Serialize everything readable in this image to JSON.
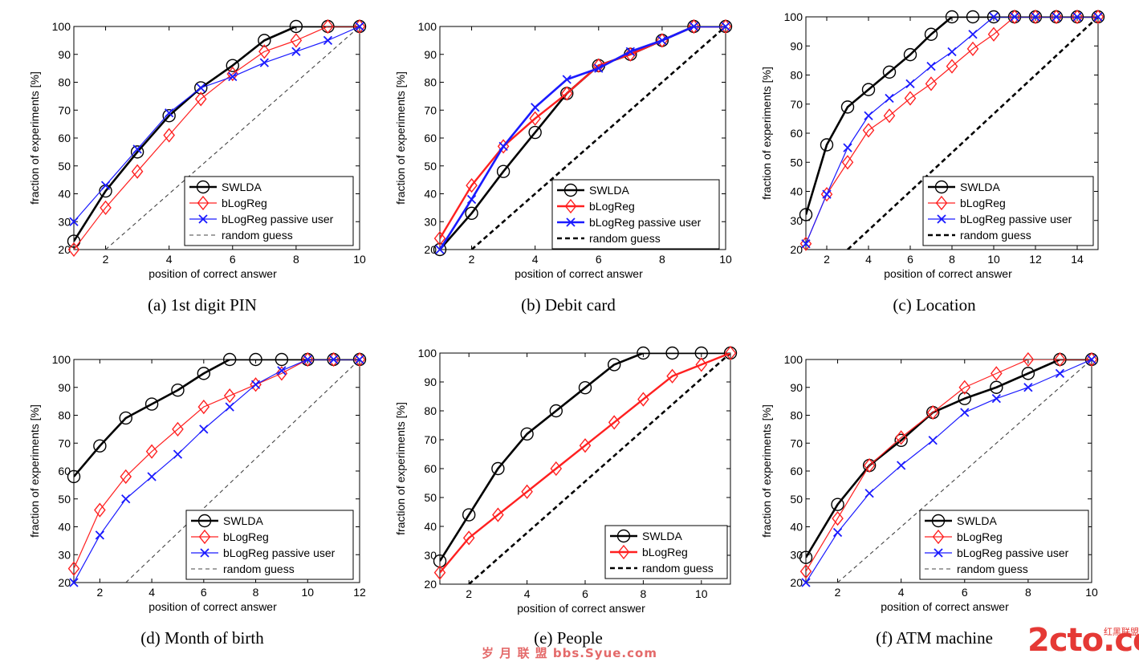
{
  "colors": {
    "swlda": "#000000",
    "blogreg": "#ff2020",
    "passive": "#1a1aff",
    "random": "#444444"
  },
  "chart_data": [
    {
      "type": "line",
      "caption": "(a)  1st digit PIN",
      "xlabel": "position of correct answer",
      "ylabel": "fraction of experiments [%]",
      "xlim": [
        1,
        10
      ],
      "ylim": [
        20,
        100
      ],
      "xticks": [
        2,
        4,
        6,
        8,
        10
      ],
      "yticks": [
        20,
        30,
        40,
        50,
        60,
        70,
        80,
        90,
        100
      ],
      "legend_position": "bottom-right",
      "series": [
        {
          "name": "SWLDA",
          "style": "swlda",
          "x": [
            1,
            2,
            3,
            4,
            5,
            6,
            7,
            8,
            9,
            10
          ],
          "y": [
            23,
            41,
            55,
            68,
            78,
            86,
            95,
            100,
            100,
            100
          ]
        },
        {
          "name": "bLogReg",
          "style": "blogreg",
          "x": [
            1,
            2,
            3,
            4,
            5,
            6,
            7,
            8,
            9,
            10
          ],
          "y": [
            20,
            35,
            48,
            61,
            74,
            83,
            91,
            95,
            100,
            100
          ]
        },
        {
          "name": "bLogReg passive user",
          "style": "passive_thin",
          "x": [
            1,
            2,
            3,
            4,
            5,
            6,
            7,
            8,
            9,
            10
          ],
          "y": [
            30,
            43,
            56,
            69,
            78,
            82,
            87,
            91,
            95,
            100
          ]
        },
        {
          "name": "random guess",
          "style": "random_thin",
          "x": [
            2,
            10
          ],
          "y": [
            20,
            100
          ]
        }
      ]
    },
    {
      "type": "line",
      "caption": "(b)  Debit card",
      "xlabel": "position of correct answer",
      "ylabel": "fraction of experiments [%]",
      "xlim": [
        1,
        10
      ],
      "ylim": [
        20,
        100
      ],
      "xticks": [
        2,
        4,
        6,
        8,
        10
      ],
      "yticks": [
        20,
        30,
        40,
        50,
        60,
        70,
        80,
        90,
        100
      ],
      "legend_position": "bottom-right",
      "series": [
        {
          "name": "SWLDA",
          "style": "swlda",
          "x": [
            1,
            2,
            3,
            4,
            5,
            6,
            7,
            8,
            9,
            10
          ],
          "y": [
            20,
            33,
            48,
            62,
            76,
            86,
            90,
            95,
            100,
            100
          ]
        },
        {
          "name": "bLogReg",
          "style": "blogreg_thick",
          "x": [
            1,
            2,
            3,
            4,
            5,
            6,
            7,
            8,
            9,
            10
          ],
          "y": [
            24,
            43,
            57,
            67,
            76,
            86,
            90,
            95,
            100,
            100
          ]
        },
        {
          "name": "bLogReg passive user",
          "style": "passive_thick",
          "x": [
            1,
            2,
            3,
            4,
            5,
            6,
            7,
            8,
            9,
            10
          ],
          "y": [
            20,
            38,
            57,
            71,
            81,
            85,
            91,
            95,
            100,
            100
          ]
        },
        {
          "name": "random guess",
          "style": "random_thick",
          "x": [
            2,
            10
          ],
          "y": [
            20,
            100
          ]
        }
      ]
    },
    {
      "type": "line",
      "caption": "(c)  Location",
      "xlabel": "position of correct answer",
      "ylabel": "fraction of experiments [%]",
      "xlim": [
        1,
        15
      ],
      "ylim": [
        20,
        100
      ],
      "xticks": [
        2,
        4,
        6,
        8,
        10,
        12,
        14
      ],
      "yticks": [
        20,
        30,
        40,
        50,
        60,
        70,
        80,
        90,
        100
      ],
      "legend_position": "bottom-right",
      "series": [
        {
          "name": "SWLDA",
          "style": "swlda",
          "x": [
            1,
            2,
            3,
            4,
            5,
            6,
            7,
            8,
            9,
            10,
            11,
            12,
            13,
            14,
            15
          ],
          "y": [
            32,
            56,
            69,
            75,
            81,
            87,
            94,
            100,
            100,
            100,
            100,
            100,
            100,
            100,
            100
          ]
        },
        {
          "name": "bLogReg",
          "style": "blogreg",
          "x": [
            1,
            2,
            3,
            4,
            5,
            6,
            7,
            8,
            9,
            10,
            11,
            12,
            13,
            14,
            15
          ],
          "y": [
            22,
            39,
            50,
            61,
            66,
            72,
            77,
            83,
            89,
            94,
            100,
            100,
            100,
            100,
            100
          ]
        },
        {
          "name": "bLogReg passive user",
          "style": "passive_thin",
          "x": [
            1,
            2,
            3,
            4,
            5,
            6,
            7,
            8,
            9,
            10,
            11,
            12,
            13,
            14,
            15
          ],
          "y": [
            22,
            39,
            55,
            66,
            72,
            77,
            83,
            88,
            94,
            100,
            100,
            100,
            100,
            100,
            100
          ]
        },
        {
          "name": "random guess",
          "style": "random_thick",
          "x": [
            3,
            15
          ],
          "y": [
            20,
            100
          ]
        }
      ]
    },
    {
      "type": "line",
      "caption": "(d)  Month of birth",
      "xlabel": "position of correct answer",
      "ylabel": "fraction of experiments [%]",
      "xlim": [
        1,
        12
      ],
      "ylim": [
        20,
        100
      ],
      "xticks": [
        2,
        4,
        6,
        8,
        10,
        12
      ],
      "yticks": [
        20,
        30,
        40,
        50,
        60,
        70,
        80,
        90,
        100
      ],
      "legend_position": "bottom-right",
      "series": [
        {
          "name": "SWLDA",
          "style": "swlda",
          "x": [
            1,
            2,
            3,
            4,
            5,
            6,
            7,
            8,
            9,
            10,
            11,
            12
          ],
          "y": [
            58,
            69,
            79,
            84,
            89,
            95,
            100,
            100,
            100,
            100,
            100,
            100
          ]
        },
        {
          "name": "bLogReg",
          "style": "blogreg",
          "x": [
            1,
            2,
            3,
            4,
            5,
            6,
            7,
            8,
            9,
            10,
            11,
            12
          ],
          "y": [
            25,
            46,
            58,
            67,
            75,
            83,
            87,
            91,
            95,
            100,
            100,
            100
          ]
        },
        {
          "name": "bLogReg passive user",
          "style": "passive_thin",
          "x": [
            1,
            2,
            3,
            4,
            5,
            6,
            7,
            8,
            9,
            10,
            11,
            12
          ],
          "y": [
            20,
            37,
            50,
            58,
            66,
            75,
            83,
            91,
            96,
            100,
            100,
            100
          ]
        },
        {
          "name": "random guess",
          "style": "random_thin",
          "x": [
            3,
            12
          ],
          "y": [
            20,
            100
          ]
        }
      ]
    },
    {
      "type": "line",
      "caption": "(e)  People",
      "xlabel": "position of correct answer",
      "ylabel": "fraction of experiments [%]",
      "xlim": [
        1,
        11
      ],
      "ylim": [
        20,
        100
      ],
      "xticks": [
        2,
        4,
        6,
        8,
        10
      ],
      "yticks": [
        20,
        30,
        40,
        50,
        60,
        70,
        80,
        90,
        100
      ],
      "legend_position": "bottom-right",
      "series": [
        {
          "name": "SWLDA",
          "style": "swlda",
          "x": [
            1,
            2,
            3,
            4,
            5,
            6,
            7,
            8,
            9,
            10,
            11
          ],
          "y": [
            28,
            44,
            60,
            72,
            80,
            88,
            96,
            100,
            100,
            100,
            100
          ]
        },
        {
          "name": "bLogReg",
          "style": "blogreg_thick",
          "x": [
            1,
            2,
            3,
            4,
            5,
            6,
            7,
            8,
            9,
            10,
            11
          ],
          "y": [
            24,
            36,
            44,
            52,
            60,
            68,
            76,
            84,
            92,
            96,
            100
          ]
        },
        {
          "name": "random guess",
          "style": "random_thick",
          "x": [
            2,
            11
          ],
          "y": [
            20,
            100
          ]
        }
      ]
    },
    {
      "type": "line",
      "caption": "(f)  ATM machine",
      "xlabel": "position of correct answer",
      "ylabel": "fraction of experiments [%]",
      "xlim": [
        1,
        10
      ],
      "ylim": [
        20,
        100
      ],
      "xticks": [
        2,
        4,
        6,
        8,
        10
      ],
      "yticks": [
        20,
        30,
        40,
        50,
        60,
        70,
        80,
        90,
        100
      ],
      "legend_position": "bottom-right",
      "series": [
        {
          "name": "SWLDA",
          "style": "swlda",
          "x": [
            1,
            2,
            3,
            4,
            5,
            6,
            7,
            8,
            9,
            10
          ],
          "y": [
            29,
            48,
            62,
            71,
            81,
            86,
            90,
            95,
            100,
            100
          ]
        },
        {
          "name": "bLogReg",
          "style": "blogreg",
          "x": [
            1,
            2,
            3,
            4,
            5,
            6,
            7,
            8,
            9,
            10
          ],
          "y": [
            24,
            43,
            62,
            72,
            81,
            90,
            95,
            100,
            100,
            100
          ]
        },
        {
          "name": "bLogReg passive user",
          "style": "passive_thin",
          "x": [
            1,
            2,
            3,
            4,
            5,
            6,
            7,
            8,
            9,
            10
          ],
          "y": [
            20,
            38,
            52,
            62,
            71,
            81,
            86,
            90,
            95,
            100
          ]
        },
        {
          "name": "random guess",
          "style": "random_thin",
          "x": [
            2,
            10
          ],
          "y": [
            20,
            100
          ]
        }
      ]
    }
  ],
  "watermark": {
    "left_text": "岁 月 联 盟 bbs.Syue.com",
    "logo": "2cto.com",
    "logo_small": "红黑联盟"
  }
}
